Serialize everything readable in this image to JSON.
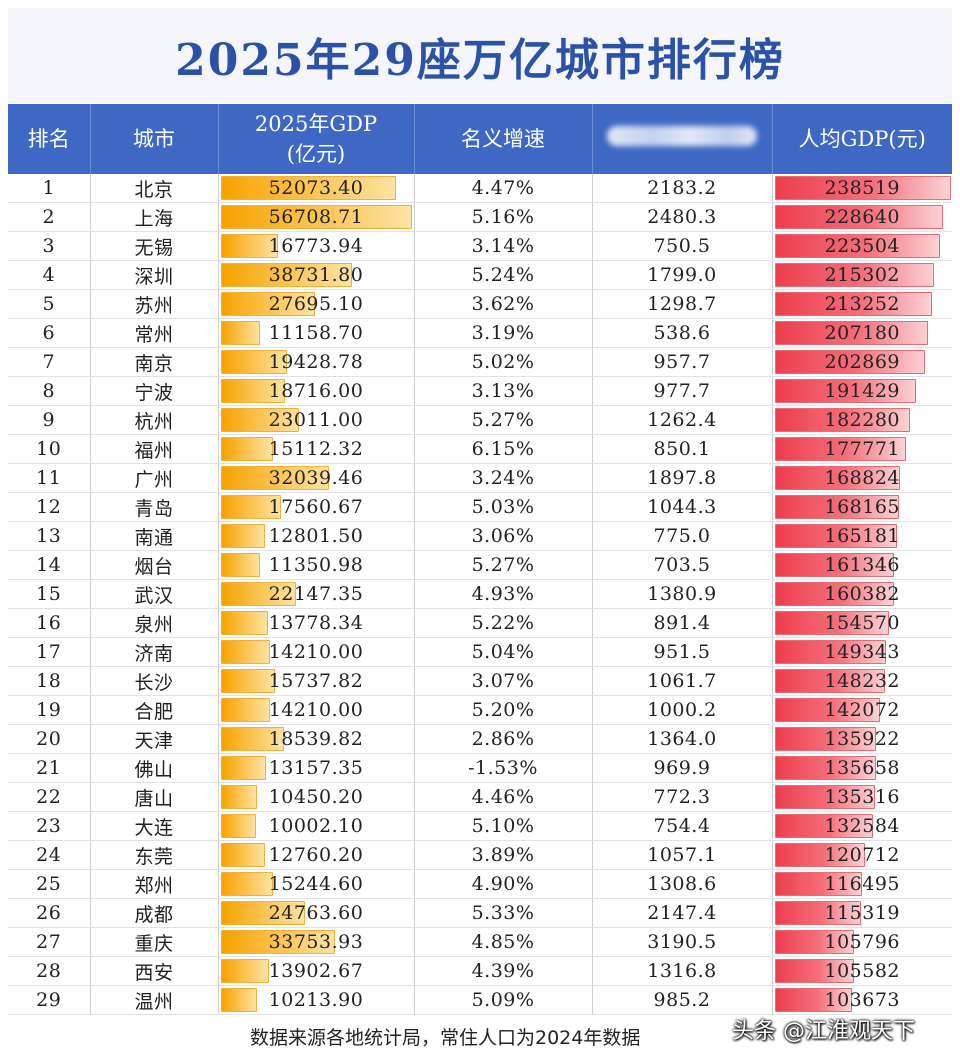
{
  "title": "2025年29座万亿城市排行榜",
  "headers": {
    "rank": "排名",
    "city": "城市",
    "gdp_line1": "2025年GDP",
    "gdp_line2": "(亿元)",
    "growth": "名义增速",
    "per_capita": "人均GDP(元)"
  },
  "colors": {
    "header_bg": "#3f68c4",
    "title": "#2c52a8",
    "gdp_bar": "#f6a200",
    "per_capita_bar": "#ee3e4e",
    "negative": "#e0352b"
  },
  "chart_data": {
    "type": "table",
    "title": "2025年29座万亿城市排行榜",
    "columns": [
      "排名",
      "城市",
      "2025年GDP(亿元)",
      "名义增速",
      "(obscured column)",
      "人均GDP(元)"
    ],
    "gdp_bar_max": 56708.71,
    "per_capita_bar_max": 238519,
    "rows": [
      {
        "rank": "1",
        "city": "北京",
        "gdp": "52073.40",
        "growth": "4.47%",
        "col5": "2183.2",
        "pc": "238519"
      },
      {
        "rank": "2",
        "city": "上海",
        "gdp": "56708.71",
        "growth": "5.16%",
        "col5": "2480.3",
        "pc": "228640"
      },
      {
        "rank": "3",
        "city": "无锡",
        "gdp": "16773.94",
        "growth": "3.14%",
        "col5": "750.5",
        "pc": "223504"
      },
      {
        "rank": "4",
        "city": "深圳",
        "gdp": "38731.80",
        "growth": "5.24%",
        "col5": "1799.0",
        "pc": "215302"
      },
      {
        "rank": "5",
        "city": "苏州",
        "gdp": "27695.10",
        "growth": "3.62%",
        "col5": "1298.7",
        "pc": "213252"
      },
      {
        "rank": "6",
        "city": "常州",
        "gdp": "11158.70",
        "growth": "3.19%",
        "col5": "538.6",
        "pc": "207180"
      },
      {
        "rank": "7",
        "city": "南京",
        "gdp": "19428.78",
        "growth": "5.02%",
        "col5": "957.7",
        "pc": "202869"
      },
      {
        "rank": "8",
        "city": "宁波",
        "gdp": "18716.00",
        "growth": "3.13%",
        "col5": "977.7",
        "pc": "191429"
      },
      {
        "rank": "9",
        "city": "杭州",
        "gdp": "23011.00",
        "growth": "5.27%",
        "col5": "1262.4",
        "pc": "182280"
      },
      {
        "rank": "10",
        "city": "福州",
        "gdp": "15112.32",
        "growth": "6.15%",
        "col5": "850.1",
        "pc": "177771"
      },
      {
        "rank": "11",
        "city": "广州",
        "gdp": "32039.46",
        "growth": "3.24%",
        "col5": "1897.8",
        "pc": "168824"
      },
      {
        "rank": "12",
        "city": "青岛",
        "gdp": "17560.67",
        "growth": "5.03%",
        "col5": "1044.3",
        "pc": "168165"
      },
      {
        "rank": "13",
        "city": "南通",
        "gdp": "12801.50",
        "growth": "3.06%",
        "col5": "775.0",
        "pc": "165181"
      },
      {
        "rank": "14",
        "city": "烟台",
        "gdp": "11350.98",
        "growth": "5.27%",
        "col5": "703.5",
        "pc": "161346"
      },
      {
        "rank": "15",
        "city": "武汉",
        "gdp": "22147.35",
        "growth": "4.93%",
        "col5": "1380.9",
        "pc": "160382"
      },
      {
        "rank": "16",
        "city": "泉州",
        "gdp": "13778.34",
        "growth": "5.22%",
        "col5": "891.4",
        "pc": "154570"
      },
      {
        "rank": "17",
        "city": "济南",
        "gdp": "14210.00",
        "growth": "5.04%",
        "col5": "951.5",
        "pc": "149343"
      },
      {
        "rank": "18",
        "city": "长沙",
        "gdp": "15737.82",
        "growth": "3.07%",
        "col5": "1061.7",
        "pc": "148232"
      },
      {
        "rank": "19",
        "city": "合肥",
        "gdp": "14210.00",
        "growth": "5.20%",
        "col5": "1000.2",
        "pc": "142072"
      },
      {
        "rank": "20",
        "city": "天津",
        "gdp": "18539.82",
        "growth": "2.86%",
        "col5": "1364.0",
        "pc": "135922"
      },
      {
        "rank": "21",
        "city": "佛山",
        "gdp": "13157.35",
        "growth": "-1.53%",
        "col5": "969.9",
        "pc": "135658"
      },
      {
        "rank": "22",
        "city": "唐山",
        "gdp": "10450.20",
        "growth": "4.46%",
        "col5": "772.3",
        "pc": "135316"
      },
      {
        "rank": "23",
        "city": "大连",
        "gdp": "10002.10",
        "growth": "5.10%",
        "col5": "754.4",
        "pc": "132584"
      },
      {
        "rank": "24",
        "city": "东莞",
        "gdp": "12760.20",
        "growth": "3.89%",
        "col5": "1057.1",
        "pc": "120712"
      },
      {
        "rank": "25",
        "city": "郑州",
        "gdp": "15244.60",
        "growth": "4.90%",
        "col5": "1308.6",
        "pc": "116495"
      },
      {
        "rank": "26",
        "city": "成都",
        "gdp": "24763.60",
        "growth": "5.33%",
        "col5": "2147.4",
        "pc": "115319"
      },
      {
        "rank": "27",
        "city": "重庆",
        "gdp": "33753.93",
        "growth": "4.85%",
        "col5": "3190.5",
        "pc": "105796"
      },
      {
        "rank": "28",
        "city": "西安",
        "gdp": "13902.67",
        "growth": "4.39%",
        "col5": "1316.8",
        "pc": "105582"
      },
      {
        "rank": "29",
        "city": "温州",
        "gdp": "10213.90",
        "growth": "5.09%",
        "col5": "985.2",
        "pc": "103673"
      }
    ]
  },
  "footer": "数据来源各地统计局，常住人口为2024年数据",
  "watermark": "头条 @江淮观天下"
}
